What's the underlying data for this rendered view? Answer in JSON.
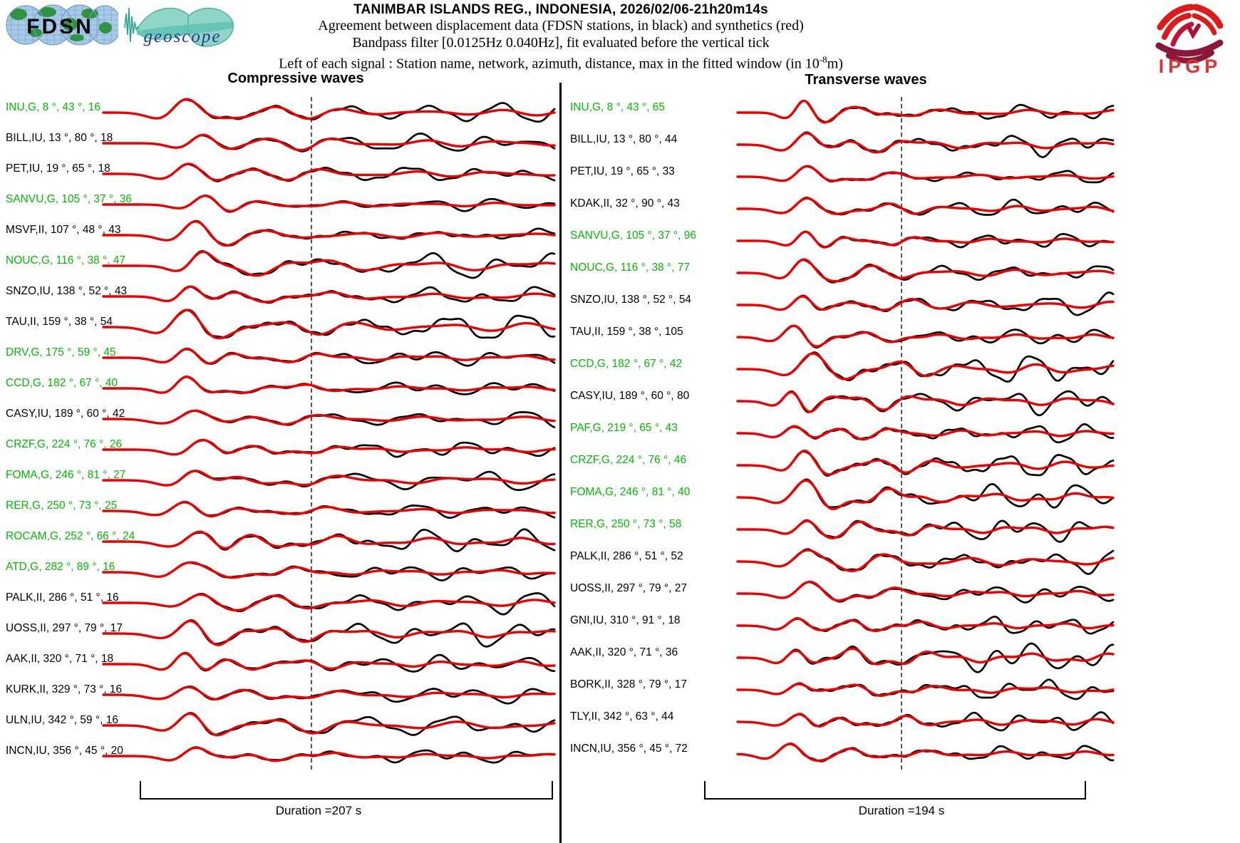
{
  "header": {
    "title": "TANIMBAR ISLANDS REG., INDONESIA, 2026/02/06-21h20m14s",
    "line2": "Agreement between displacement data (FDSN stations, in black) and synthetics (red)",
    "line3": "Bandpass filter [0.0125Hz 0.040Hz], fit evaluated before the vertical tick",
    "line4_prefix": "Left of each signal : Station name, network, azimuth, distance, max in the fitted window (in 10",
    "line4_sup": "-8",
    "line4_suffix": "m)"
  },
  "logos": {
    "fdsn": "FDSN",
    "geoscope": "geoscope",
    "ipgp": "IPGP"
  },
  "chart_data": {
    "type": "line",
    "title": "TANIMBAR ISLANDS REG., INDONESIA, 2026/02/06-21h20m14s",
    "series_legend": [
      {
        "name": "displacement data (FDSN stations)",
        "color": "#000000"
      },
      {
        "name": "synthetics",
        "color": "#ee0000"
      }
    ],
    "station_label_format": "Station name, network, azimuth, distance, max in the fitted window (in 1e-8 m)",
    "bandpass_hz": [
      0.0125,
      0.04
    ],
    "geoscope_station_color": "#00bb00",
    "columns": [
      {
        "title": "Compressive waves",
        "duration_label": "Duration =207 s",
        "duration_s": 207,
        "stations": [
          {
            "station": "INU",
            "network": "G",
            "azimuth_deg": 8,
            "distance_deg": 43,
            "max_1e8m": 16,
            "label": "INU,G, 8 °, 43 °, 16"
          },
          {
            "station": "BILL",
            "network": "IU",
            "azimuth_deg": 13,
            "distance_deg": 80,
            "max_1e8m": 18,
            "label": "BILL,IU, 13 °, 80 °, 18"
          },
          {
            "station": "PET",
            "network": "IU",
            "azimuth_deg": 19,
            "distance_deg": 65,
            "max_1e8m": 18,
            "label": "PET,IU, 19 °, 65 °, 18"
          },
          {
            "station": "SANVU",
            "network": "G",
            "azimuth_deg": 105,
            "distance_deg": 37,
            "max_1e8m": 36,
            "label": "SANVU,G, 105 °, 37 °, 36"
          },
          {
            "station": "MSVF",
            "network": "II",
            "azimuth_deg": 107,
            "distance_deg": 48,
            "max_1e8m": 43,
            "label": "MSVF,II, 107 °, 48 °, 43"
          },
          {
            "station": "NOUC",
            "network": "G",
            "azimuth_deg": 116,
            "distance_deg": 38,
            "max_1e8m": 47,
            "label": "NOUC,G, 116 °, 38 °, 47"
          },
          {
            "station": "SNZO",
            "network": "IU",
            "azimuth_deg": 138,
            "distance_deg": 52,
            "max_1e8m": 43,
            "label": "SNZO,IU, 138 °, 52 °, 43"
          },
          {
            "station": "TAU",
            "network": "II",
            "azimuth_deg": 159,
            "distance_deg": 38,
            "max_1e8m": 54,
            "label": "TAU,II, 159 °, 38 °, 54"
          },
          {
            "station": "DRV",
            "network": "G",
            "azimuth_deg": 175,
            "distance_deg": 59,
            "max_1e8m": 45,
            "label": "DRV,G, 175 °, 59 °, 45"
          },
          {
            "station": "CCD",
            "network": "G",
            "azimuth_deg": 182,
            "distance_deg": 67,
            "max_1e8m": 40,
            "label": "CCD,G, 182 °, 67 °, 40"
          },
          {
            "station": "CASY",
            "network": "IU",
            "azimuth_deg": 189,
            "distance_deg": 60,
            "max_1e8m": 42,
            "label": "CASY,IU, 189 °, 60 °, 42"
          },
          {
            "station": "CRZF",
            "network": "G",
            "azimuth_deg": 224,
            "distance_deg": 76,
            "max_1e8m": 26,
            "label": "CRZF,G, 224 °, 76 °, 26"
          },
          {
            "station": "FOMA",
            "network": "G",
            "azimuth_deg": 246,
            "distance_deg": 81,
            "max_1e8m": 27,
            "label": "FOMA,G, 246 °, 81 °, 27"
          },
          {
            "station": "RER",
            "network": "G",
            "azimuth_deg": 250,
            "distance_deg": 73,
            "max_1e8m": 25,
            "label": "RER,G, 250 °, 73 °, 25"
          },
          {
            "station": "ROCAM",
            "network": "G",
            "azimuth_deg": 252,
            "distance_deg": 66,
            "max_1e8m": 24,
            "label": "ROCAM,G, 252 °, 66 °, 24"
          },
          {
            "station": "ATD",
            "network": "G",
            "azimuth_deg": 282,
            "distance_deg": 89,
            "max_1e8m": 16,
            "label": "ATD,G, 282 °, 89 °, 16"
          },
          {
            "station": "PALK",
            "network": "II",
            "azimuth_deg": 286,
            "distance_deg": 51,
            "max_1e8m": 16,
            "label": "PALK,II, 286 °, 51 °, 16"
          },
          {
            "station": "UOSS",
            "network": "II",
            "azimuth_deg": 297,
            "distance_deg": 79,
            "max_1e8m": 17,
            "label": "UOSS,II, 297 °, 79 °, 17"
          },
          {
            "station": "AAK",
            "network": "II",
            "azimuth_deg": 320,
            "distance_deg": 71,
            "max_1e8m": 18,
            "label": "AAK,II, 320 °, 71 °, 18"
          },
          {
            "station": "KURK",
            "network": "II",
            "azimuth_deg": 329,
            "distance_deg": 73,
            "max_1e8m": 16,
            "label": "KURK,II, 329 °, 73 °, 16"
          },
          {
            "station": "ULN",
            "network": "IU",
            "azimuth_deg": 342,
            "distance_deg": 59,
            "max_1e8m": 16,
            "label": "ULN,IU, 342 °, 59 °, 16"
          },
          {
            "station": "INCN",
            "network": "IU",
            "azimuth_deg": 356,
            "distance_deg": 45,
            "max_1e8m": 20,
            "label": "INCN,IU, 356 °, 45 °, 20"
          }
        ]
      },
      {
        "title": "Transverse waves",
        "duration_label": "Duration =194 s",
        "duration_s": 194,
        "stations": [
          {
            "station": "INU",
            "network": "G",
            "azimuth_deg": 8,
            "distance_deg": 43,
            "max_1e8m": 65,
            "label": "INU,G, 8 °, 43 °, 65"
          },
          {
            "station": "BILL",
            "network": "IU",
            "azimuth_deg": 13,
            "distance_deg": 80,
            "max_1e8m": 44,
            "label": "BILL,IU, 13 °, 80 °, 44"
          },
          {
            "station": "PET",
            "network": "IU",
            "azimuth_deg": 19,
            "distance_deg": 65,
            "max_1e8m": 33,
            "label": "PET,IU, 19 °, 65 °, 33"
          },
          {
            "station": "KDAK",
            "network": "II",
            "azimuth_deg": 32,
            "distance_deg": 90,
            "max_1e8m": 43,
            "label": "KDAK,II, 32 °, 90 °, 43"
          },
          {
            "station": "SANVU",
            "network": "G",
            "azimuth_deg": 105,
            "distance_deg": 37,
            "max_1e8m": 96,
            "label": "SANVU,G, 105 °, 37 °, 96"
          },
          {
            "station": "NOUC",
            "network": "G",
            "azimuth_deg": 116,
            "distance_deg": 38,
            "max_1e8m": 77,
            "label": "NOUC,G, 116 °, 38 °, 77"
          },
          {
            "station": "SNZO",
            "network": "IU",
            "azimuth_deg": 138,
            "distance_deg": 52,
            "max_1e8m": 54,
            "label": "SNZO,IU, 138 °, 52 °, 54"
          },
          {
            "station": "TAU",
            "network": "II",
            "azimuth_deg": 159,
            "distance_deg": 38,
            "max_1e8m": 105,
            "label": "TAU,II, 159 °, 38 °, 105"
          },
          {
            "station": "CCD",
            "network": "G",
            "azimuth_deg": 182,
            "distance_deg": 67,
            "max_1e8m": 42,
            "label": "CCD,G, 182 °, 67 °, 42"
          },
          {
            "station": "CASY",
            "network": "IU",
            "azimuth_deg": 189,
            "distance_deg": 60,
            "max_1e8m": 80,
            "label": "CASY,IU, 189 °, 60 °, 80"
          },
          {
            "station": "PAF",
            "network": "G",
            "azimuth_deg": 219,
            "distance_deg": 65,
            "max_1e8m": 43,
            "label": "PAF,G, 219 °, 65 °, 43"
          },
          {
            "station": "CRZF",
            "network": "G",
            "azimuth_deg": 224,
            "distance_deg": 76,
            "max_1e8m": 46,
            "label": "CRZF,G, 224 °, 76 °, 46"
          },
          {
            "station": "FOMA",
            "network": "G",
            "azimuth_deg": 246,
            "distance_deg": 81,
            "max_1e8m": 40,
            "label": "FOMA,G, 246 °, 81 °, 40"
          },
          {
            "station": "RER",
            "network": "G",
            "azimuth_deg": 250,
            "distance_deg": 73,
            "max_1e8m": 58,
            "label": "RER,G, 250 °, 73 °, 58"
          },
          {
            "station": "PALK",
            "network": "II",
            "azimuth_deg": 286,
            "distance_deg": 51,
            "max_1e8m": 52,
            "label": "PALK,II, 286 °, 51 °, 52"
          },
          {
            "station": "UOSS",
            "network": "II",
            "azimuth_deg": 297,
            "distance_deg": 79,
            "max_1e8m": 27,
            "label": "UOSS,II, 297 °, 79 °, 27"
          },
          {
            "station": "GNI",
            "network": "IU",
            "azimuth_deg": 310,
            "distance_deg": 91,
            "max_1e8m": 18,
            "label": "GNI,IU, 310 °, 91 °, 18"
          },
          {
            "station": "AAK",
            "network": "II",
            "azimuth_deg": 320,
            "distance_deg": 71,
            "max_1e8m": 36,
            "label": "AAK,II, 320 °, 71 °, 36"
          },
          {
            "station": "BORK",
            "network": "II",
            "azimuth_deg": 328,
            "distance_deg": 79,
            "max_1e8m": 17,
            "label": "BORK,II, 328 °, 79 °, 17"
          },
          {
            "station": "TLY",
            "network": "II",
            "azimuth_deg": 342,
            "distance_deg": 63,
            "max_1e8m": 44,
            "label": "TLY,II, 342 °, 63 °, 44"
          },
          {
            "station": "INCN",
            "network": "IU",
            "azimuth_deg": 356,
            "distance_deg": 45,
            "max_1e8m": 72,
            "label": "INCN,IU, 356 °, 45 °, 72"
          }
        ]
      }
    ]
  }
}
